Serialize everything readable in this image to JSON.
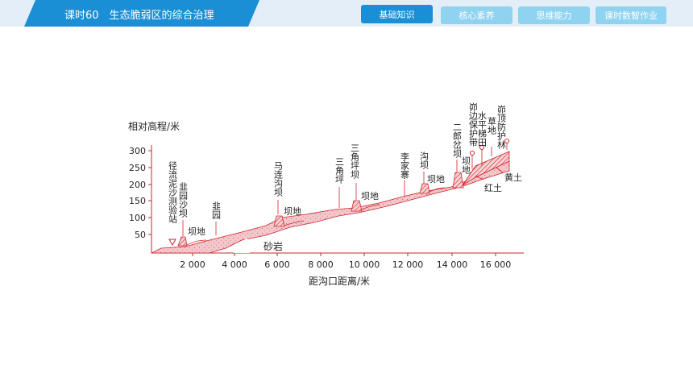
{
  "header": {
    "lesson_title": "课时60　生态脆弱区的综合治理",
    "nav": [
      {
        "label": "基础知识",
        "active": true
      },
      {
        "label": "核心素养",
        "active": false
      },
      {
        "label": "思维能力",
        "active": false
      },
      {
        "label": "课时数智作业",
        "active": false
      }
    ]
  },
  "figure": {
    "y_axis_label": "相对高程/米",
    "x_axis_label": "距沟口距离/米",
    "y_ticks": [
      "300",
      "250",
      "200",
      "150",
      "100",
      "50"
    ],
    "x_ticks": [
      "2 000",
      "4 000",
      "6 000",
      "8 000",
      "10 000",
      "12 000",
      "14 000",
      "16 000"
    ],
    "labels": {
      "station": "径流泥沙测验站",
      "leek_dam": "韭园沙坝",
      "leek_garden": "韭园",
      "malian_dam": "马连沟坝",
      "sanjiaoping": "三角坪",
      "sanjiaoping_dam": "三角坪坝",
      "lijiazhai": "李家寨",
      "gou_dam": "沟坝",
      "erlang_dam": "二郎岔坝",
      "edge_belt": "峁边保护带",
      "terrace": "水平梯田",
      "grassland": "草地",
      "top_forest": "峁顶防护林",
      "damland": "坝地",
      "sandstone": "砂岩",
      "red_soil": "红土",
      "loess": "黄土"
    }
  },
  "colors": {
    "accent": "#1a8fd6",
    "tab_light": "#8fd3f0",
    "bar_bg": "#e3eef8",
    "pink": "#f2c9cc",
    "red": "#d2232a"
  }
}
